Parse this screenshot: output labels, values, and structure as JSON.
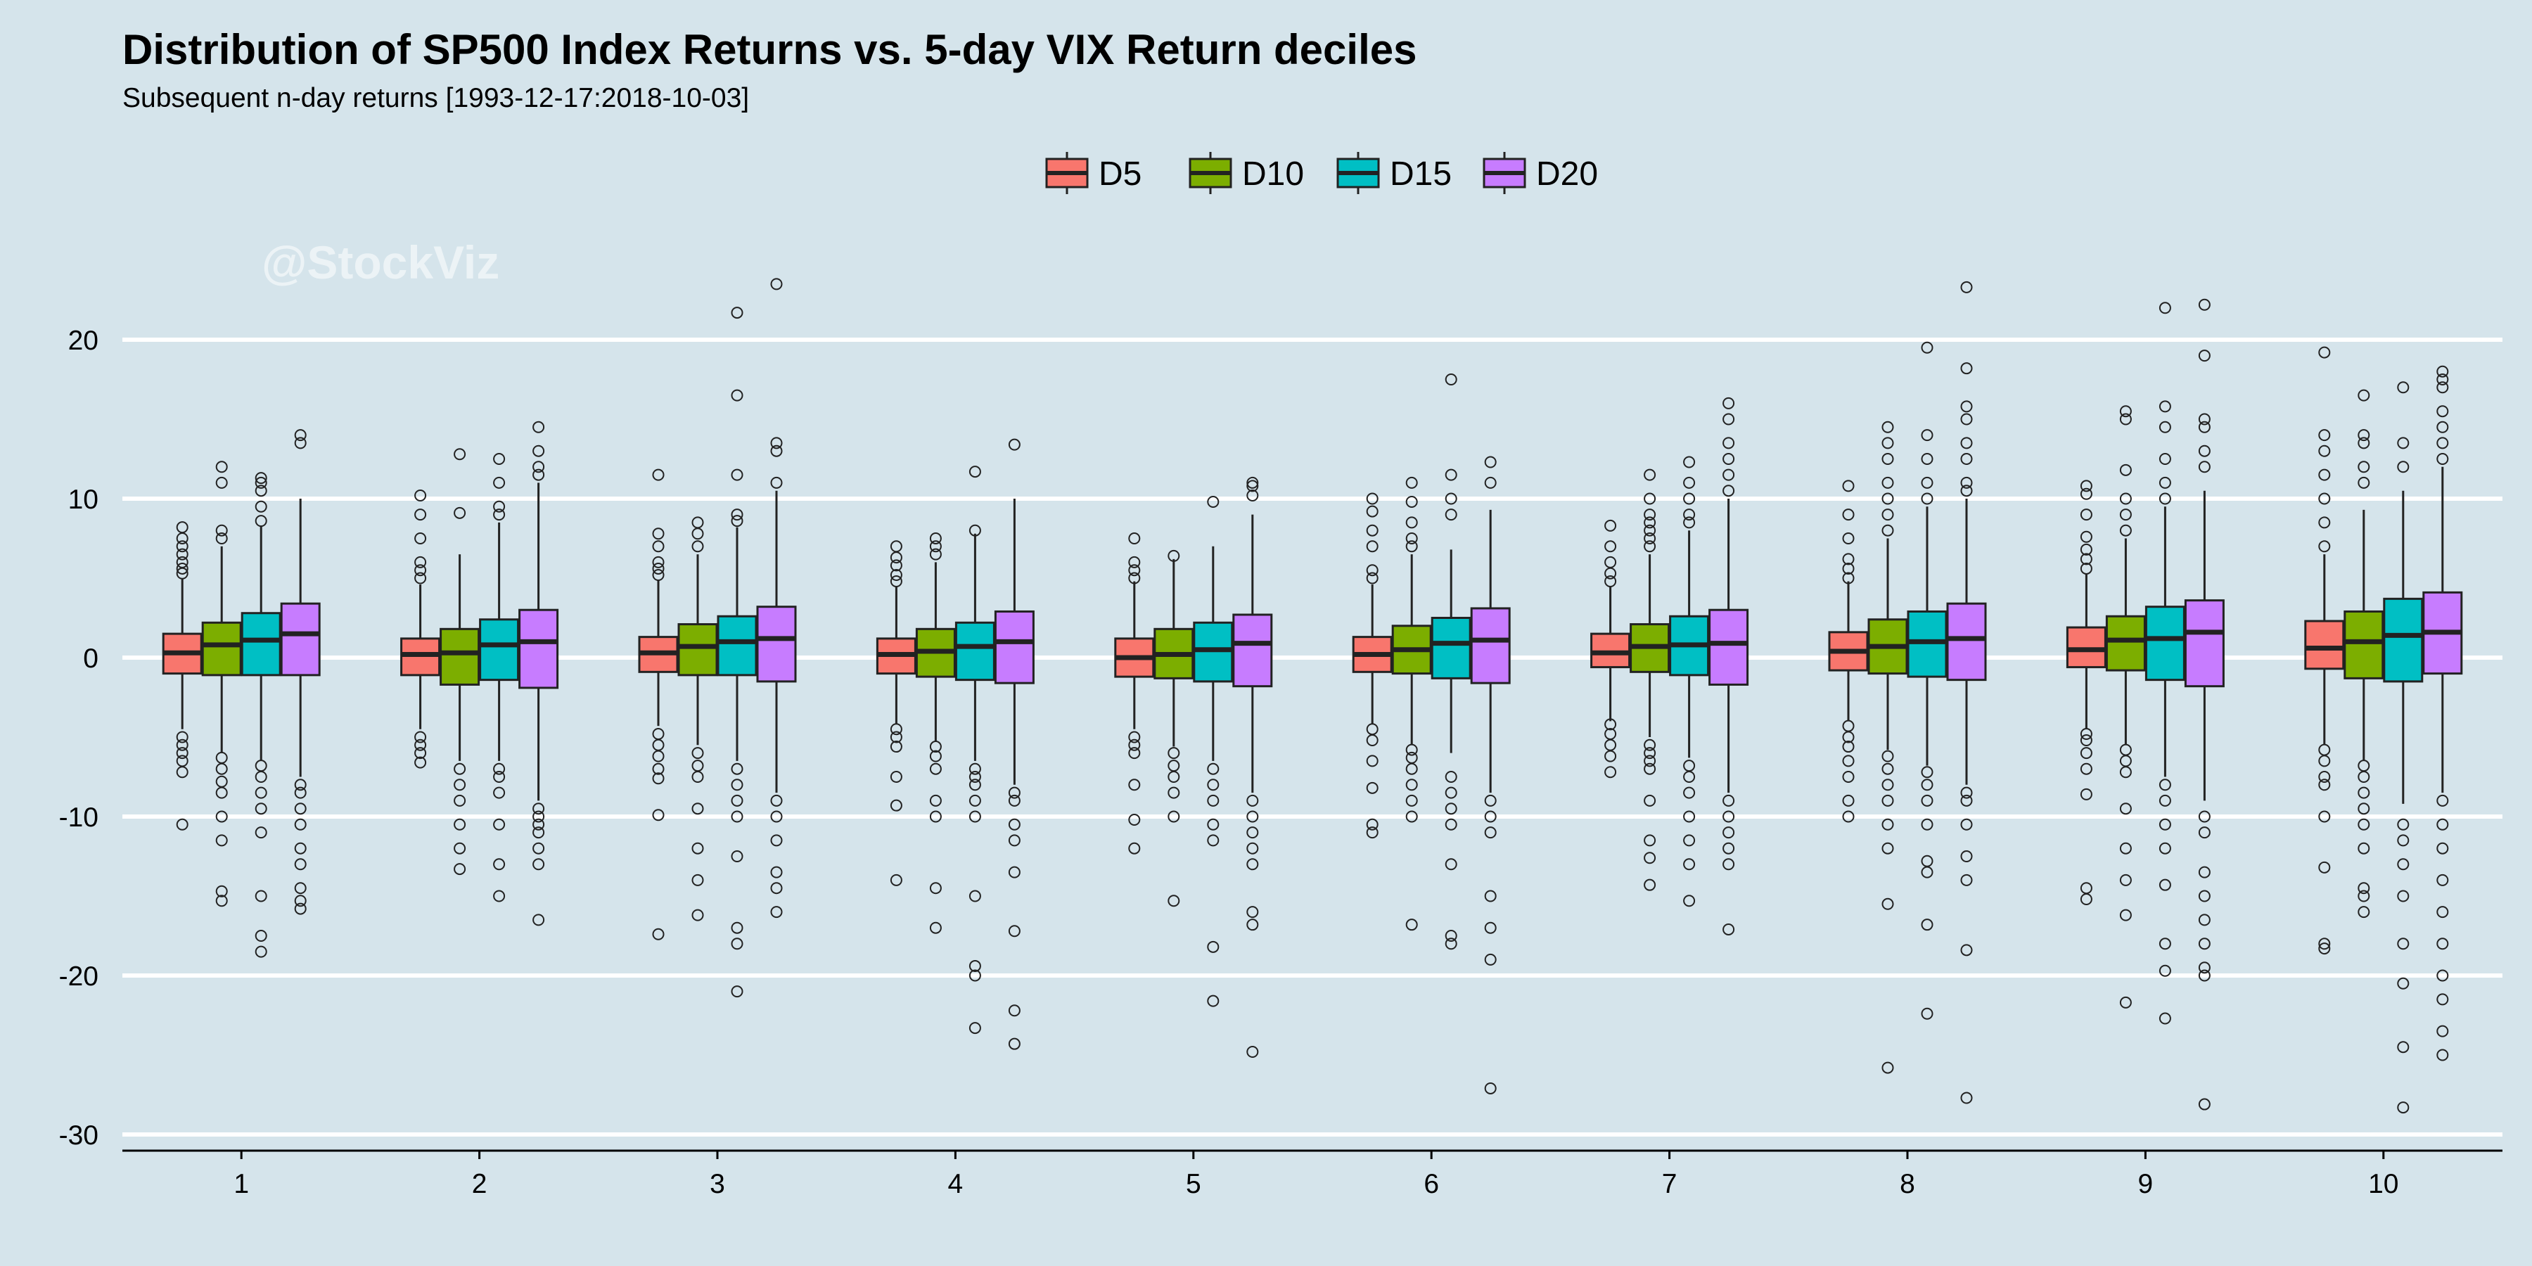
{
  "chart_data": {
    "type": "boxplot",
    "title": "Distribution of SP500 Index Returns vs. 5-day VIX Return deciles",
    "subtitle": "Subsequent n-day returns [1993-12-17:2018-10-03]",
    "watermark": "@StockViz",
    "xlabel": "",
    "ylabel": "",
    "categories": [
      "1",
      "2",
      "3",
      "4",
      "5",
      "6",
      "7",
      "8",
      "9",
      "10"
    ],
    "ylim": [
      -31,
      26
    ],
    "yticks": [
      20,
      10,
      0,
      -10,
      -20,
      -30
    ],
    "ytick_labels": [
      "20",
      "10",
      "0",
      "-10",
      "-20",
      "-30"
    ],
    "grid": "horizontal",
    "legend_position": "top",
    "series": [
      {
        "name": "D5",
        "color": "#f8766d",
        "boxes": [
          {
            "q1": -1.0,
            "median": 0.3,
            "q3": 1.5,
            "low": -4.5,
            "high": 5.0,
            "outliers": [
              5.3,
              5.6,
              6.0,
              6.5,
              7.0,
              7.5,
              8.2,
              -5.0,
              -5.5,
              -6.0,
              -6.5,
              -7.2,
              -10.5
            ]
          },
          {
            "q1": -1.1,
            "median": 0.2,
            "q3": 1.2,
            "low": -4.5,
            "high": 4.6,
            "outliers": [
              5.0,
              5.5,
              6.0,
              7.5,
              9.0,
              10.2,
              -5.0,
              -5.5,
              -6.0,
              -6.6
            ]
          },
          {
            "q1": -0.9,
            "median": 0.3,
            "q3": 1.3,
            "low": -4.3,
            "high": 4.9,
            "outliers": [
              5.2,
              5.6,
              6.0,
              7.0,
              7.8,
              11.5,
              -4.8,
              -5.5,
              -6.2,
              -7.0,
              -7.6,
              -9.9,
              -17.4
            ]
          },
          {
            "q1": -1.0,
            "median": 0.2,
            "q3": 1.2,
            "low": -4.2,
            "high": 4.5,
            "outliers": [
              4.8,
              5.2,
              5.8,
              6.3,
              7.0,
              -4.5,
              -5.0,
              -5.6,
              -7.5,
              -9.3,
              -14.0
            ]
          },
          {
            "q1": -1.2,
            "median": 0.0,
            "q3": 1.2,
            "low": -4.5,
            "high": 4.8,
            "outliers": [
              5.0,
              5.5,
              6.0,
              7.5,
              -5.0,
              -5.5,
              -6.0,
              -8.0,
              -10.2,
              -12.0
            ]
          },
          {
            "q1": -0.9,
            "median": 0.2,
            "q3": 1.3,
            "low": -4.2,
            "high": 4.6,
            "outliers": [
              5.0,
              5.5,
              7.0,
              8.0,
              9.2,
              10.0,
              -4.5,
              -5.2,
              -6.5,
              -8.2,
              -10.5,
              -11.0
            ]
          },
          {
            "q1": -0.6,
            "median": 0.3,
            "q3": 1.5,
            "low": -4.0,
            "high": 4.5,
            "outliers": [
              4.8,
              5.3,
              6.0,
              7.0,
              8.3,
              -4.2,
              -4.8,
              -5.5,
              -6.2,
              -7.2
            ]
          },
          {
            "q1": -0.8,
            "median": 0.4,
            "q3": 1.6,
            "low": -4.0,
            "high": 4.8,
            "outliers": [
              5.0,
              5.6,
              6.2,
              7.5,
              9.0,
              10.8,
              -4.3,
              -5.0,
              -5.6,
              -6.5,
              -7.5,
              -9.0,
              -10.0
            ]
          },
          {
            "q1": -0.6,
            "median": 0.5,
            "q3": 1.9,
            "low": -4.5,
            "high": 5.3,
            "outliers": [
              5.6,
              6.2,
              6.8,
              7.6,
              9.0,
              10.3,
              10.8,
              -4.8,
              -5.2,
              -6.0,
              -7.0,
              -8.6,
              -14.5,
              -15.2
            ]
          },
          {
            "q1": -0.7,
            "median": 0.6,
            "q3": 2.3,
            "low": -5.5,
            "high": 6.5,
            "outliers": [
              7.0,
              8.5,
              10.0,
              11.5,
              13.0,
              14.0,
              19.2,
              -5.8,
              -6.5,
              -7.5,
              -8.0,
              -10.0,
              -13.2,
              -18.0,
              -18.3
            ]
          }
        ]
      },
      {
        "name": "D10",
        "color": "#7cae00",
        "boxes": [
          {
            "q1": -1.1,
            "median": 0.8,
            "q3": 2.2,
            "low": -6.0,
            "high": 7.0,
            "outliers": [
              7.5,
              8.0,
              11.0,
              12.0,
              -6.3,
              -7.0,
              -7.8,
              -8.5,
              -10.0,
              -11.5,
              -14.7,
              -15.3
            ]
          },
          {
            "q1": -1.7,
            "median": 0.3,
            "q3": 1.8,
            "low": -6.5,
            "high": 6.5,
            "outliers": [
              9.1,
              12.8,
              -7.0,
              -8.0,
              -9.0,
              -10.5,
              -12.0,
              -13.3
            ]
          },
          {
            "q1": -1.1,
            "median": 0.7,
            "q3": 2.1,
            "low": -5.5,
            "high": 6.5,
            "outliers": [
              7.0,
              7.8,
              8.5,
              -6.0,
              -6.8,
              -7.5,
              -9.5,
              -12.0,
              -14.0,
              -16.2
            ]
          },
          {
            "q1": -1.2,
            "median": 0.4,
            "q3": 1.8,
            "low": -5.3,
            "high": 6.0,
            "outliers": [
              6.5,
              7.0,
              7.5,
              -5.6,
              -6.2,
              -7.0,
              -9.0,
              -10.0,
              -14.5,
              -17.0
            ]
          },
          {
            "q1": -1.3,
            "median": 0.2,
            "q3": 1.8,
            "low": -5.6,
            "high": 6.2,
            "outliers": [
              6.4,
              -6.0,
              -6.8,
              -7.5,
              -8.5,
              -10.0,
              -15.3
            ]
          },
          {
            "q1": -1.0,
            "median": 0.5,
            "q3": 2.0,
            "low": -5.5,
            "high": 6.5,
            "outliers": [
              7.0,
              7.5,
              8.5,
              9.8,
              11.0,
              -5.8,
              -6.3,
              -7.0,
              -8.0,
              -9.0,
              -10.0,
              -16.8
            ]
          },
          {
            "q1": -0.9,
            "median": 0.7,
            "q3": 2.1,
            "low": -5.0,
            "high": 6.5,
            "outliers": [
              7.0,
              7.5,
              8.0,
              8.5,
              9.0,
              10.0,
              11.5,
              -5.5,
              -6.0,
              -6.5,
              -7.0,
              -9.0,
              -11.5,
              -12.6,
              -14.3
            ]
          },
          {
            "q1": -1.0,
            "median": 0.7,
            "q3": 2.4,
            "low": -5.8,
            "high": 7.5,
            "outliers": [
              8.0,
              9.0,
              10.0,
              11.0,
              12.5,
              13.5,
              14.5,
              -6.2,
              -7.0,
              -8.0,
              -9.0,
              -10.5,
              -12.0,
              -15.5,
              -25.8
            ]
          },
          {
            "q1": -0.8,
            "median": 1.1,
            "q3": 2.6,
            "low": -5.5,
            "high": 7.5,
            "outliers": [
              8.0,
              9.0,
              10.0,
              11.8,
              15.0,
              15.5,
              -5.8,
              -6.5,
              -7.2,
              -9.5,
              -12.0,
              -14.0,
              -16.2,
              -21.7
            ]
          },
          {
            "q1": -1.3,
            "median": 1.0,
            "q3": 2.9,
            "low": -6.5,
            "high": 9.3,
            "outliers": [
              11.0,
              12.0,
              13.5,
              14.0,
              16.5,
              -6.8,
              -7.5,
              -8.5,
              -9.5,
              -10.5,
              -12.0,
              -14.5,
              -15.0,
              -16.0
            ]
          }
        ]
      },
      {
        "name": "D15",
        "color": "#00bfc4",
        "boxes": [
          {
            "q1": -1.1,
            "median": 1.1,
            "q3": 2.8,
            "low": -6.5,
            "high": 8.3,
            "outliers": [
              8.6,
              9.5,
              10.5,
              11.0,
              11.3,
              -6.8,
              -7.5,
              -8.5,
              -9.5,
              -11.0,
              -15.0,
              -17.5,
              -18.5
            ]
          },
          {
            "q1": -1.4,
            "median": 0.8,
            "q3": 2.4,
            "low": -6.5,
            "high": 8.5,
            "outliers": [
              9.0,
              9.5,
              11.0,
              12.5,
              -7.0,
              -7.5,
              -8.5,
              -10.5,
              -13.0,
              -15.0
            ]
          },
          {
            "q1": -1.1,
            "median": 1.0,
            "q3": 2.6,
            "low": -6.5,
            "high": 8.2,
            "outliers": [
              8.6,
              9.0,
              11.5,
              16.5,
              21.7,
              -7.0,
              -8.0,
              -9.0,
              -10.0,
              -12.5,
              -17.0,
              -18.0,
              -21.0
            ]
          },
          {
            "q1": -1.4,
            "median": 0.7,
            "q3": 2.2,
            "low": -6.5,
            "high": 7.8,
            "outliers": [
              8.0,
              11.7,
              -7.0,
              -7.5,
              -8.0,
              -9.0,
              -10.0,
              -15.0,
              -19.4,
              -20.0,
              -23.3
            ]
          },
          {
            "q1": -1.5,
            "median": 0.5,
            "q3": 2.2,
            "low": -6.5,
            "high": 7.0,
            "outliers": [
              9.8,
              -7.0,
              -8.0,
              -9.0,
              -10.5,
              -11.5,
              -18.2,
              -21.6
            ]
          },
          {
            "q1": -1.3,
            "median": 0.9,
            "q3": 2.5,
            "low": -6.0,
            "high": 6.8,
            "outliers": [
              9.0,
              10.0,
              11.5,
              17.5,
              -7.5,
              -8.5,
              -9.5,
              -10.5,
              -13.0,
              -17.5,
              -18.0
            ]
          },
          {
            "q1": -1.1,
            "median": 0.8,
            "q3": 2.6,
            "low": -6.3,
            "high": 8.0,
            "outliers": [
              8.5,
              9.0,
              10.0,
              11.0,
              12.3,
              -6.8,
              -7.5,
              -8.5,
              -10.0,
              -11.5,
              -13.0,
              -15.3
            ]
          },
          {
            "q1": -1.2,
            "median": 1.0,
            "q3": 2.9,
            "low": -6.8,
            "high": 9.5,
            "outliers": [
              10.0,
              11.0,
              12.5,
              14.0,
              19.5,
              -7.2,
              -8.0,
              -9.0,
              -10.5,
              -12.8,
              -13.5,
              -16.8,
              -22.4
            ]
          },
          {
            "q1": -1.4,
            "median": 1.2,
            "q3": 3.2,
            "low": -7.5,
            "high": 9.5,
            "outliers": [
              10.0,
              11.0,
              12.5,
              14.5,
              15.8,
              22.0,
              -8.0,
              -9.0,
              -10.5,
              -12.0,
              -14.3,
              -18.0,
              -19.7,
              -22.7
            ]
          },
          {
            "q1": -1.5,
            "median": 1.4,
            "q3": 3.7,
            "low": -9.2,
            "high": 10.5,
            "outliers": [
              12.0,
              13.5,
              17.0,
              -10.5,
              -11.5,
              -13.0,
              -15.0,
              -18.0,
              -20.5,
              -24.5,
              -28.3
            ]
          }
        ]
      },
      {
        "name": "D20",
        "color": "#c77cff",
        "boxes": [
          {
            "q1": -1.1,
            "median": 1.5,
            "q3": 3.4,
            "low": -7.5,
            "high": 10.0,
            "outliers": [
              13.5,
              14.0,
              -8.0,
              -8.5,
              -9.5,
              -10.5,
              -12.0,
              -13.0,
              -14.5,
              -15.3,
              -15.8
            ]
          },
          {
            "q1": -1.9,
            "median": 1.0,
            "q3": 3.0,
            "low": -9.0,
            "high": 11.0,
            "outliers": [
              11.5,
              12.0,
              13.0,
              14.5,
              -9.5,
              -10.0,
              -10.5,
              -11.0,
              -12.0,
              -13.0,
              -16.5
            ]
          },
          {
            "q1": -1.5,
            "median": 1.2,
            "q3": 3.2,
            "low": -8.5,
            "high": 10.5,
            "outliers": [
              11.0,
              13.0,
              13.5,
              23.5,
              -9.0,
              -10.0,
              -11.5,
              -13.5,
              -14.5,
              -16.0
            ]
          },
          {
            "q1": -1.6,
            "median": 1.0,
            "q3": 2.9,
            "low": -8.0,
            "high": 10.0,
            "outliers": [
              13.4,
              -8.5,
              -9.0,
              -10.5,
              -11.5,
              -13.5,
              -17.2,
              -22.2,
              -24.3
            ]
          },
          {
            "q1": -1.8,
            "median": 0.9,
            "q3": 2.7,
            "low": -8.5,
            "high": 9.0,
            "outliers": [
              10.2,
              10.8,
              11.0,
              -9.0,
              -10.0,
              -11.0,
              -12.0,
              -13.0,
              -16.0,
              -16.8,
              -24.8
            ]
          },
          {
            "q1": -1.6,
            "median": 1.1,
            "q3": 3.1,
            "low": -8.5,
            "high": 9.3,
            "outliers": [
              11.0,
              12.3,
              -9.0,
              -10.0,
              -11.0,
              -15.0,
              -17.0,
              -19.0,
              -27.1
            ]
          },
          {
            "q1": -1.7,
            "median": 0.9,
            "q3": 3.0,
            "low": -8.5,
            "high": 10.0,
            "outliers": [
              10.5,
              11.5,
              12.5,
              13.5,
              15.0,
              16.0,
              -9.0,
              -10.0,
              -11.0,
              -12.0,
              -13.0,
              -17.1
            ]
          },
          {
            "q1": -1.4,
            "median": 1.2,
            "q3": 3.4,
            "low": -8.0,
            "high": 10.0,
            "outliers": [
              10.5,
              11.0,
              12.5,
              13.5,
              15.0,
              15.8,
              18.2,
              23.3,
              -8.5,
              -9.0,
              -10.5,
              -12.5,
              -14.0,
              -18.4,
              -27.7
            ]
          },
          {
            "q1": -1.8,
            "median": 1.6,
            "q3": 3.6,
            "low": -9.0,
            "high": 10.5,
            "outliers": [
              12.0,
              13.0,
              14.5,
              15.0,
              19.0,
              22.2,
              -10.0,
              -11.0,
              -13.5,
              -15.0,
              -16.5,
              -18.0,
              -19.5,
              -20.0,
              -28.1
            ]
          },
          {
            "q1": -1.0,
            "median": 1.6,
            "q3": 4.1,
            "low": -8.5,
            "high": 12.0,
            "outliers": [
              12.5,
              13.5,
              14.5,
              15.5,
              17.0,
              17.5,
              18.0,
              -9.0,
              -10.5,
              -12.0,
              -14.0,
              -16.0,
              -18.0,
              -20.0,
              -21.5,
              -23.5,
              -25.0
            ]
          }
        ]
      }
    ]
  }
}
